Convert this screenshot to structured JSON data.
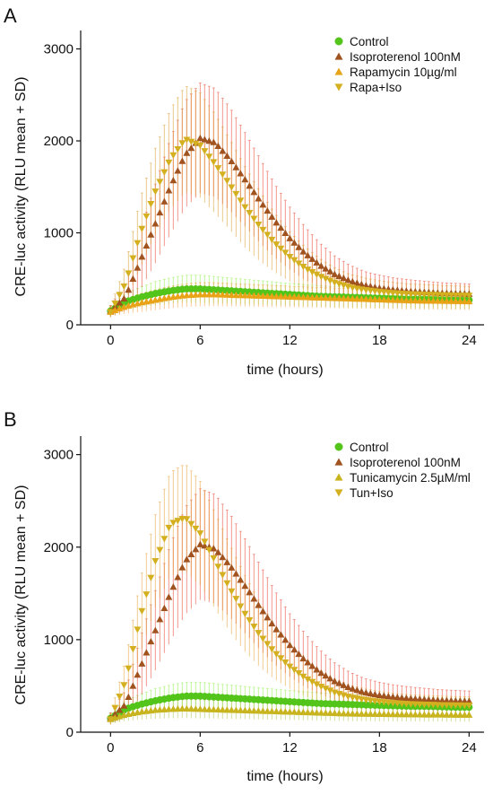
{
  "chart_data": [
    {
      "panel": "A",
      "type": "scatter",
      "xlabel": "time (hours)",
      "ylabel": "CRE-luc activity (RLU mean + SD)",
      "xlim": [
        -2,
        25
      ],
      "ylim": [
        0,
        3200
      ],
      "xticks": [
        0,
        6,
        12,
        18,
        24
      ],
      "yticks": [
        0,
        1000,
        2000,
        3000
      ],
      "legend_position": "top-right",
      "series": [
        {
          "name": "Control",
          "marker": "circle",
          "color": "#52c41a",
          "error_color": "#8ff04a",
          "x": [
            0,
            1,
            2,
            3,
            4,
            5,
            6,
            7,
            8,
            9,
            10,
            11,
            12,
            13,
            14,
            15,
            16,
            17,
            18,
            19,
            20,
            21,
            22,
            23,
            24
          ],
          "y": [
            150,
            250,
            300,
            340,
            370,
            390,
            390,
            380,
            370,
            360,
            350,
            340,
            330,
            320,
            310,
            305,
            300,
            295,
            290,
            285,
            280,
            280,
            275,
            270,
            270
          ],
          "sd": [
            60,
            90,
            110,
            130,
            140,
            150,
            150,
            145,
            140,
            135,
            130,
            125,
            120,
            118,
            115,
            112,
            110,
            108,
            105,
            103,
            100,
            100,
            98,
            96,
            95
          ]
        },
        {
          "name": "Isoproterenol 100nM",
          "marker": "triangle-up",
          "color": "#a0521f",
          "error_color": "#e8412f",
          "x": [
            0,
            1,
            2,
            3,
            4,
            5,
            6,
            7,
            8,
            9,
            10,
            11,
            12,
            13,
            14,
            15,
            16,
            17,
            18,
            19,
            20,
            21,
            22,
            23,
            24
          ],
          "y": [
            150,
            300,
            700,
            1100,
            1500,
            1850,
            2030,
            1980,
            1800,
            1580,
            1350,
            1130,
            940,
            780,
            650,
            550,
            480,
            430,
            400,
            380,
            365,
            355,
            345,
            340,
            335
          ],
          "sd": [
            60,
            150,
            320,
            430,
            520,
            580,
            600,
            590,
            560,
            510,
            460,
            400,
            340,
            290,
            240,
            200,
            170,
            150,
            140,
            130,
            125,
            120,
            115,
            112,
            110
          ]
        },
        {
          "name": "Rapamycin 10µg/ml",
          "marker": "triangle-up",
          "color": "#e8a317",
          "error_color": "#f2a040",
          "x": [
            0,
            1,
            2,
            3,
            4,
            5,
            6,
            7,
            8,
            9,
            10,
            11,
            12,
            13,
            14,
            15,
            16,
            17,
            18,
            19,
            20,
            21,
            22,
            23,
            24
          ],
          "y": [
            140,
            200,
            240,
            270,
            300,
            320,
            330,
            330,
            325,
            320,
            315,
            310,
            305,
            300,
            295,
            290,
            285,
            280,
            275,
            270,
            265,
            262,
            260,
            258,
            255
          ],
          "sd": [
            50,
            80,
            100,
            110,
            120,
            125,
            130,
            128,
            125,
            122,
            120,
            118,
            115,
            112,
            110,
            108,
            106,
            104,
            102,
            100,
            98,
            96,
            95,
            94,
            93
          ]
        },
        {
          "name": "Rapa+Iso",
          "marker": "triangle-down",
          "color": "#d4b020",
          "error_color": "#d89a2c",
          "x": [
            0,
            1,
            2,
            3,
            4,
            5,
            6,
            7,
            8,
            9,
            10,
            11,
            12,
            13,
            14,
            15,
            16,
            17,
            18,
            19,
            20,
            21,
            22,
            23,
            24
          ],
          "y": [
            140,
            450,
            1000,
            1450,
            1800,
            2020,
            1950,
            1750,
            1520,
            1280,
            1070,
            890,
            740,
            620,
            530,
            460,
            410,
            380,
            360,
            345,
            335,
            330,
            325,
            320,
            318
          ],
          "sd": [
            60,
            200,
            380,
            470,
            540,
            580,
            570,
            540,
            490,
            440,
            380,
            320,
            270,
            230,
            190,
            160,
            140,
            130,
            120,
            115,
            110,
            108,
            105,
            103,
            100
          ]
        }
      ]
    },
    {
      "panel": "B",
      "type": "scatter",
      "xlabel": "time (hours)",
      "ylabel": "CRE-luc activity (RLU mean + SD)",
      "xlim": [
        -2,
        25
      ],
      "ylim": [
        0,
        3200
      ],
      "xticks": [
        0,
        6,
        12,
        18,
        24
      ],
      "yticks": [
        0,
        1000,
        2000,
        3000
      ],
      "legend_position": "top-right",
      "series": [
        {
          "name": "Control",
          "marker": "circle",
          "color": "#52c41a",
          "error_color": "#8ff04a",
          "x": [
            0,
            1,
            2,
            3,
            4,
            5,
            6,
            7,
            8,
            9,
            10,
            11,
            12,
            13,
            14,
            15,
            16,
            17,
            18,
            19,
            20,
            21,
            22,
            23,
            24
          ],
          "y": [
            150,
            250,
            300,
            340,
            370,
            390,
            390,
            380,
            370,
            360,
            350,
            340,
            330,
            320,
            310,
            305,
            300,
            295,
            290,
            285,
            280,
            280,
            275,
            270,
            270
          ],
          "sd": [
            60,
            90,
            110,
            130,
            140,
            150,
            150,
            145,
            140,
            135,
            130,
            125,
            120,
            118,
            115,
            112,
            110,
            108,
            105,
            103,
            100,
            100,
            98,
            96,
            95
          ]
        },
        {
          "name": "Isoproterenol 100nM",
          "marker": "triangle-up",
          "color": "#a0521f",
          "error_color": "#e8412f",
          "x": [
            0,
            1,
            2,
            3,
            4,
            5,
            6,
            7,
            8,
            9,
            10,
            11,
            12,
            13,
            14,
            15,
            16,
            17,
            18,
            19,
            20,
            21,
            22,
            23,
            24
          ],
          "y": [
            150,
            300,
            700,
            1100,
            1500,
            1850,
            2030,
            1980,
            1800,
            1580,
            1350,
            1130,
            940,
            780,
            650,
            550,
            480,
            430,
            400,
            380,
            365,
            355,
            345,
            340,
            335
          ],
          "sd": [
            60,
            150,
            320,
            430,
            520,
            580,
            600,
            590,
            560,
            510,
            460,
            400,
            340,
            290,
            240,
            200,
            170,
            150,
            140,
            130,
            125,
            120,
            115,
            112,
            110
          ]
        },
        {
          "name": "Tunicamycin 2.5µM/ml",
          "marker": "triangle-up",
          "color": "#c8b41e",
          "error_color": "#a8c84a",
          "x": [
            0,
            1,
            2,
            3,
            4,
            5,
            6,
            7,
            8,
            9,
            10,
            11,
            12,
            13,
            14,
            15,
            16,
            17,
            18,
            19,
            20,
            21,
            22,
            23,
            24
          ],
          "y": [
            140,
            190,
            220,
            240,
            250,
            255,
            250,
            245,
            240,
            235,
            230,
            225,
            220,
            215,
            210,
            205,
            200,
            198,
            196,
            194,
            192,
            190,
            190,
            188,
            188
          ],
          "sd": [
            50,
            70,
            85,
            95,
            100,
            102,
            100,
            98,
            96,
            94,
            92,
            90,
            88,
            86,
            84,
            82,
            80,
            79,
            78,
            77,
            76,
            76,
            75,
            75,
            75
          ]
        },
        {
          "name": "Tun+Iso",
          "marker": "triangle-down",
          "color": "#d4b020",
          "error_color": "#e6a034",
          "x": [
            0,
            1,
            2,
            3,
            4,
            5,
            6,
            7,
            8,
            9,
            10,
            11,
            12,
            13,
            14,
            15,
            16,
            17,
            18,
            19,
            20,
            21,
            22,
            23,
            24
          ],
          "y": [
            140,
            550,
            1250,
            1850,
            2250,
            2320,
            2150,
            1850,
            1550,
            1280,
            1050,
            860,
            710,
            590,
            500,
            430,
            380,
            350,
            330,
            315,
            305,
            300,
            295,
            292,
            290
          ],
          "sd": [
            60,
            220,
            400,
            500,
            560,
            580,
            560,
            520,
            470,
            410,
            350,
            290,
            240,
            200,
            170,
            145,
            130,
            120,
            112,
            105,
            100,
            98,
            96,
            94,
            92
          ]
        }
      ]
    }
  ]
}
